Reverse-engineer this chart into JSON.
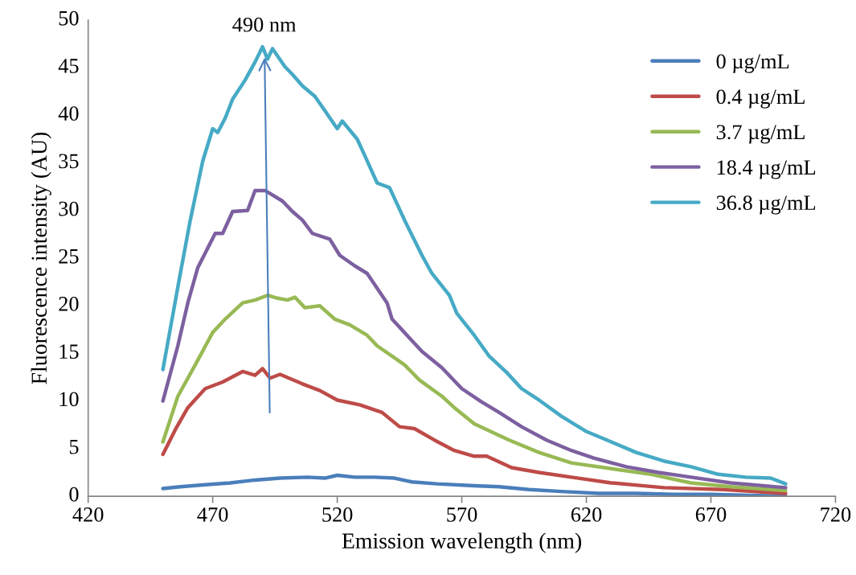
{
  "chart_data": {
    "type": "line",
    "xlabel": "Emission wavelength (nm)",
    "ylabel": "Fluorescence intensity (AU)",
    "xlim": [
      420,
      720
    ],
    "xticks": [
      420,
      470,
      520,
      570,
      620,
      670,
      720
    ],
    "ylim": [
      0,
      50
    ],
    "yticks": [
      0,
      5,
      10,
      15,
      20,
      25,
      30,
      35,
      40,
      45,
      50
    ],
    "grid": false,
    "legend": "top right",
    "marker": "none",
    "line_style": "solid",
    "annotations": [
      {
        "text": "490 nm",
        "x": 492,
        "y": 45.5
      }
    ],
    "series": [
      {
        "name": "0 µg/mL",
        "color": "#4a7ebb",
        "x": [
          450,
          457,
          467,
          477,
          487,
          497,
          508,
          515,
          520,
          527,
          535,
          543,
          550,
          560,
          575,
          585,
          597,
          610,
          625,
          640,
          655,
          670,
          685,
          700
        ],
        "values": [
          0.8,
          1.0,
          1.2,
          1.4,
          1.7,
          1.9,
          2.0,
          1.9,
          2.2,
          2.0,
          2.0,
          1.9,
          1.5,
          1.3,
          1.1,
          1.0,
          0.7,
          0.5,
          0.3,
          0.3,
          0.2,
          0.2,
          0.1,
          0.0
        ]
      },
      {
        "name": "0.4 µg/mL",
        "color": "#be4b48",
        "x": [
          450,
          455,
          460,
          467,
          474,
          482,
          487,
          490,
          493,
          497,
          506,
          513,
          520,
          529,
          538,
          545,
          551,
          559,
          567,
          575,
          580,
          590,
          601,
          614,
          630,
          651,
          675,
          700
        ],
        "values": [
          4.4,
          7.0,
          9.3,
          11.3,
          12.0,
          13.1,
          12.7,
          13.4,
          12.4,
          12.8,
          11.8,
          11.1,
          10.1,
          9.6,
          8.8,
          7.3,
          7.1,
          5.9,
          4.8,
          4.2,
          4.2,
          3.0,
          2.5,
          2.0,
          1.4,
          0.9,
          0.7,
          0.3
        ]
      },
      {
        "name": "3.7 µg/mL",
        "color": "#98b954",
        "x": [
          450,
          456,
          463,
          470,
          475,
          482,
          487,
          492,
          496,
          500,
          503,
          507,
          513,
          519,
          525,
          532,
          536,
          547,
          553,
          562,
          567,
          575,
          589,
          601,
          614,
          630,
          646,
          662,
          678,
          700
        ],
        "values": [
          5.7,
          10.5,
          13.8,
          17.2,
          18.6,
          20.3,
          20.6,
          21.1,
          20.8,
          20.6,
          20.9,
          19.8,
          20.0,
          18.6,
          18.0,
          16.9,
          15.8,
          13.8,
          12.2,
          10.5,
          9.3,
          7.6,
          5.9,
          4.6,
          3.5,
          2.9,
          2.3,
          1.4,
          1.0,
          0.6
        ]
      },
      {
        "name": "18.4 µg/mL",
        "color": "#7d60a0",
        "x": [
          450,
          456,
          460,
          464,
          471,
          474,
          478,
          484,
          487,
          491,
          498,
          502,
          506,
          510,
          517,
          521,
          527,
          532,
          540,
          542,
          554,
          562,
          570,
          578,
          585,
          594,
          604,
          614,
          623,
          636,
          649,
          662,
          678,
          700
        ],
        "values": [
          10.0,
          15.8,
          20.3,
          24.0,
          27.6,
          27.6,
          29.9,
          30.0,
          32.1,
          32.1,
          31.0,
          29.9,
          29.0,
          27.6,
          27.0,
          25.3,
          24.2,
          23.4,
          20.3,
          18.6,
          15.2,
          13.5,
          11.3,
          9.9,
          8.8,
          7.3,
          5.9,
          4.8,
          4.0,
          3.1,
          2.5,
          2.0,
          1.4,
          0.9
        ]
      },
      {
        "name": "36.8 µg/mL",
        "color": "#46aac5",
        "x": [
          450,
          457,
          461,
          466,
          470,
          472,
          475,
          478,
          483,
          487,
          490,
          492,
          494,
          499,
          502,
          506,
          511,
          515,
          520,
          522,
          528,
          531,
          536,
          541,
          547,
          554,
          558,
          565,
          568,
          575,
          581,
          588,
          594,
          601,
          610,
          620,
          630,
          640,
          651,
          662,
          673,
          684,
          694,
          700
        ],
        "values": [
          13.3,
          23.4,
          29.0,
          35.2,
          38.6,
          38.2,
          39.7,
          41.7,
          43.7,
          45.6,
          47.2,
          45.9,
          47.0,
          45.1,
          44.3,
          43.1,
          42.0,
          40.5,
          38.6,
          39.4,
          37.5,
          35.8,
          32.9,
          32.4,
          29.0,
          25.3,
          23.4,
          21.1,
          19.2,
          16.9,
          14.7,
          13.0,
          11.3,
          10.1,
          8.4,
          6.8,
          5.7,
          4.6,
          3.7,
          3.1,
          2.3,
          2.0,
          1.9,
          1.3
        ]
      }
    ]
  }
}
